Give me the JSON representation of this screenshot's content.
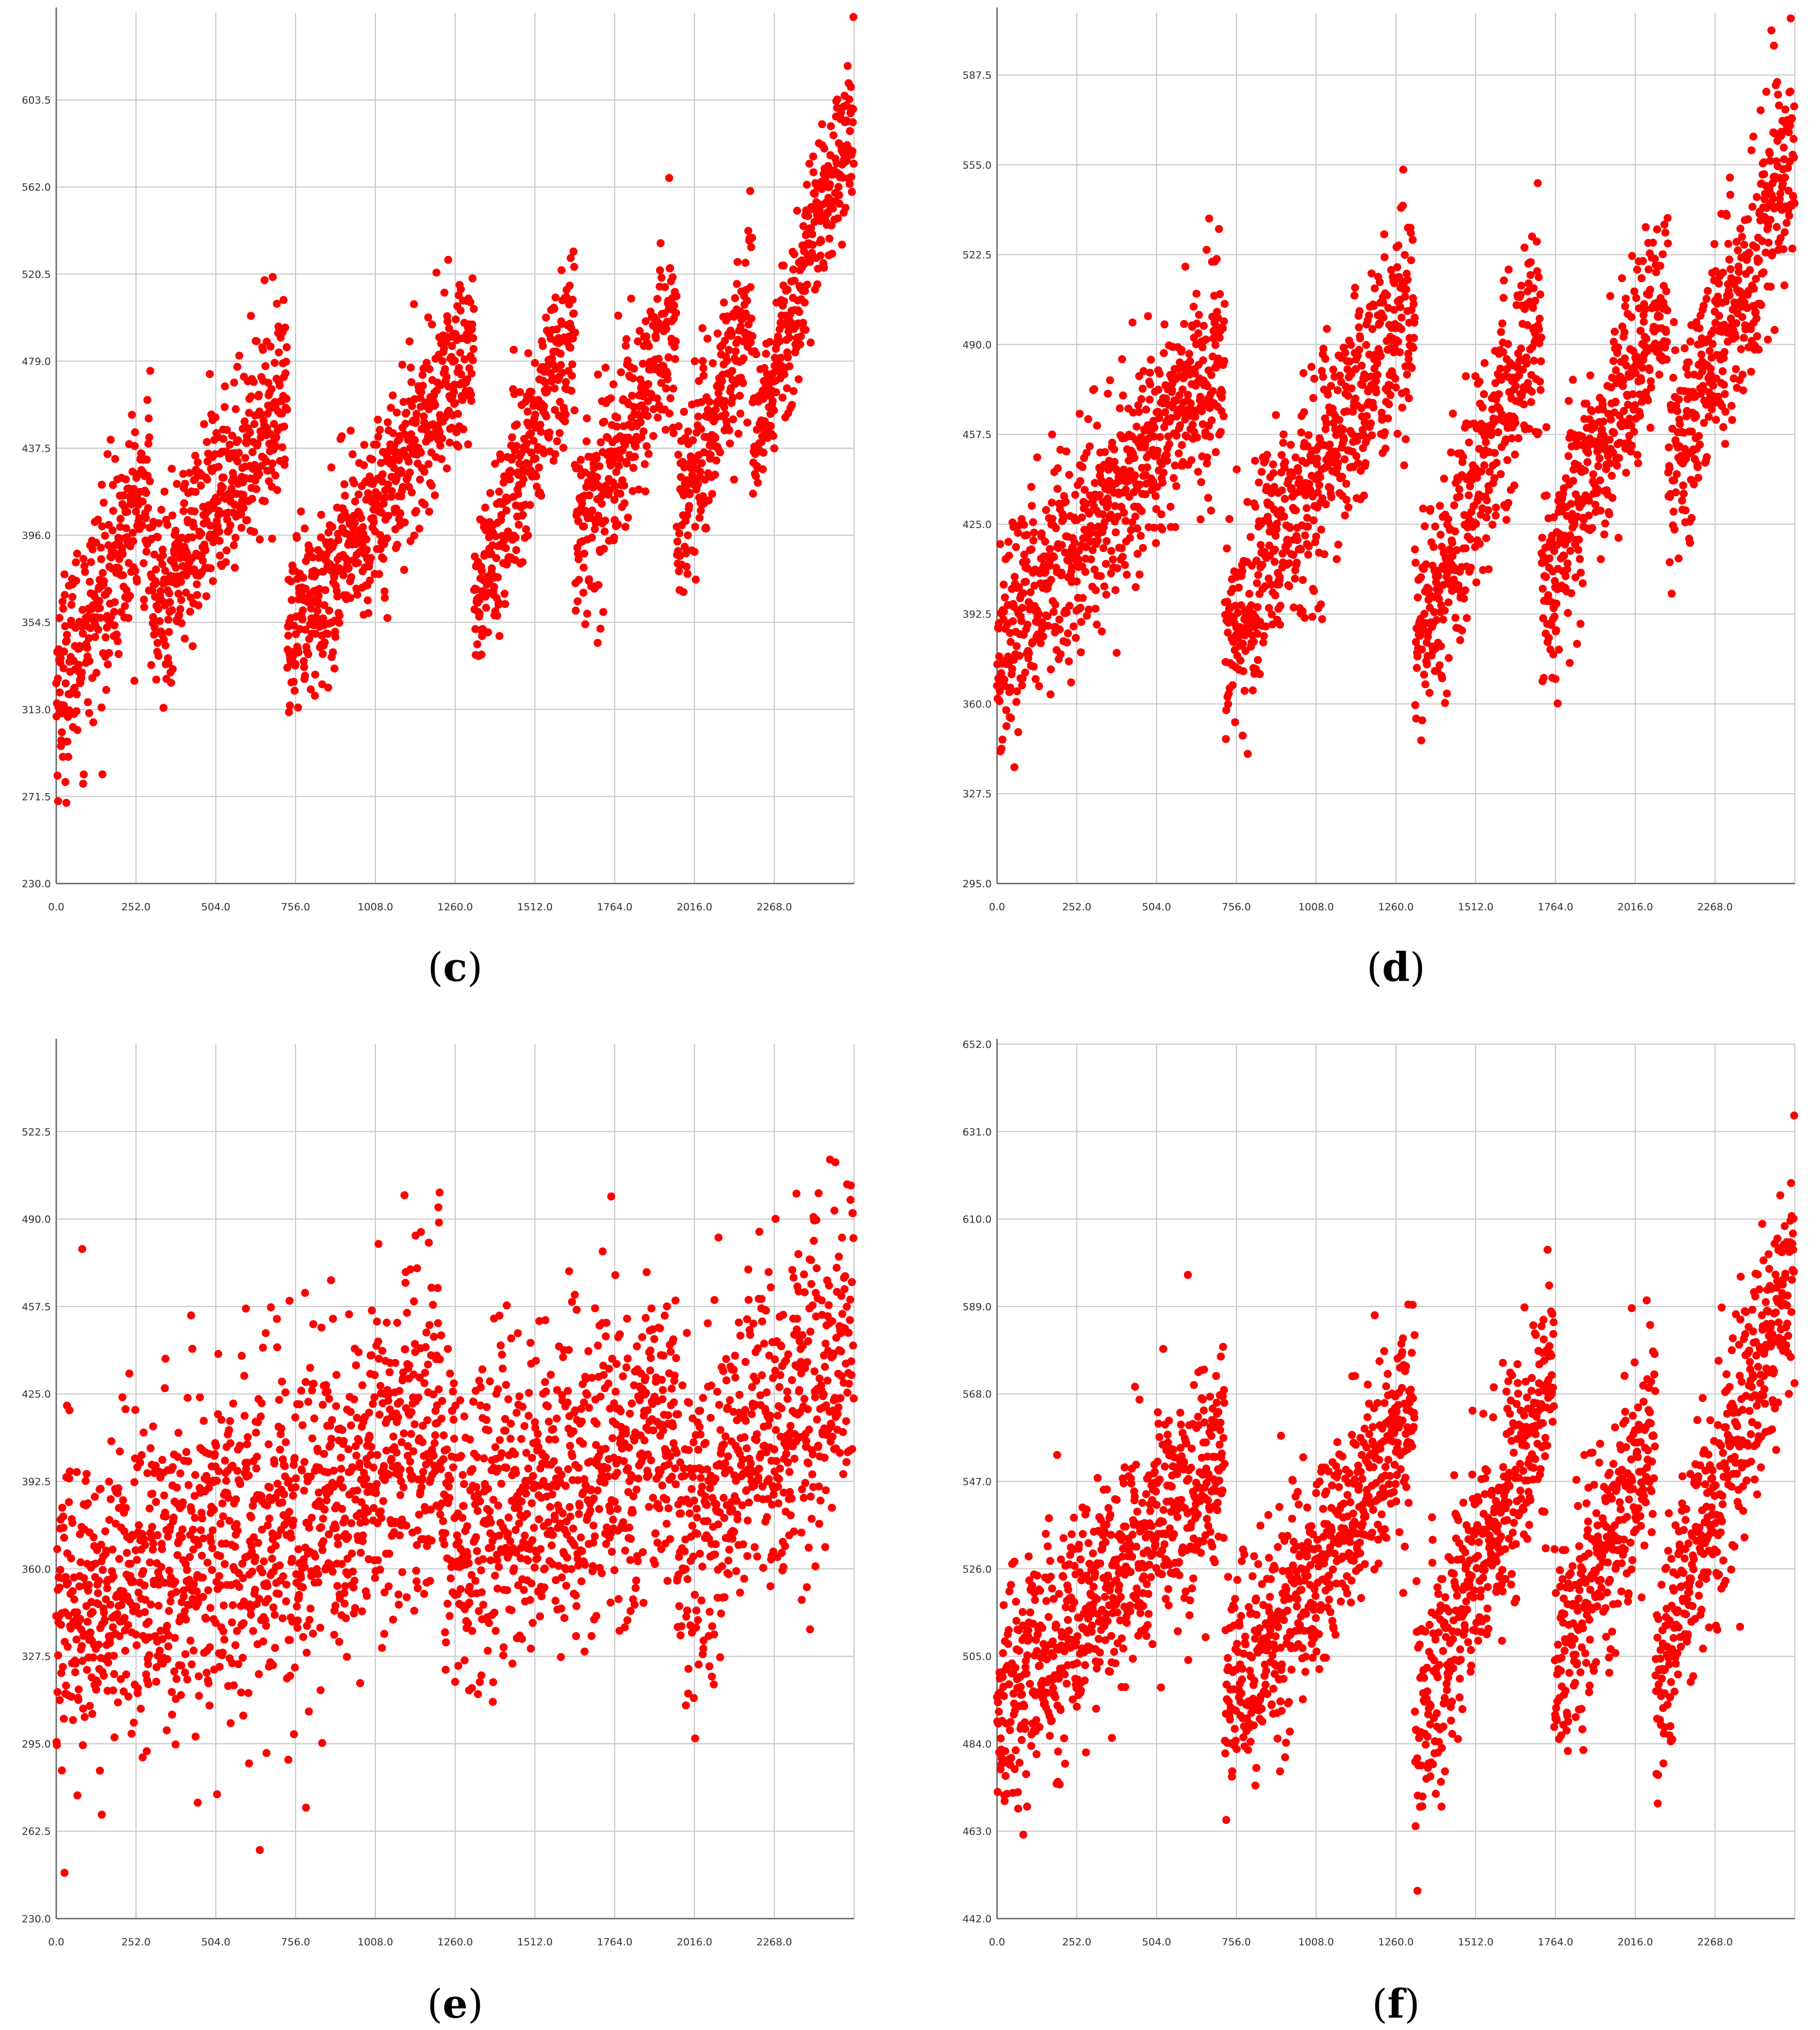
{
  "colors": {
    "points": "#ff0000",
    "grid": "#c8c8c8",
    "axis": "#606060"
  },
  "chart_data": [
    {
      "type": "scatter",
      "panel_label": {
        "open": "(",
        "letter": "c",
        "close": ")"
      },
      "xlim": [
        0,
        2520
      ],
      "ylim": [
        230.0,
        645.0
      ],
      "xticks": [
        "0.0",
        "252.0",
        "504.0",
        "756.0",
        "1008.0",
        "1260.0",
        "1512.0",
        "1764.0",
        "2016.0",
        "2268.0"
      ],
      "yticks": [
        "230.0",
        "271.5",
        "313.0",
        "354.5",
        "396.0",
        "437.5",
        "479.0",
        "520.5",
        "562.0",
        "603.5"
      ],
      "series": [
        {
          "n": 2520,
          "segments": [
            {
              "x0": 0,
              "x1": 300,
              "y_start": 320,
              "y_end": 420,
              "spread": 45
            },
            {
              "x0": 300,
              "x1": 730,
              "y_start": 360,
              "y_end": 470,
              "spread": 40
            },
            {
              "x0": 730,
              "x1": 1320,
              "y_start": 340,
              "y_end": 490,
              "spread": 40
            },
            {
              "x0": 1320,
              "x1": 1640,
              "y_start": 360,
              "y_end": 500,
              "spread": 40
            },
            {
              "x0": 1640,
              "x1": 1960,
              "y_start": 390,
              "y_end": 500,
              "spread": 40
            },
            {
              "x0": 1960,
              "x1": 2200,
              "y_start": 400,
              "y_end": 510,
              "spread": 40
            },
            {
              "x0": 2200,
              "x1": 2520,
              "y_start": 440,
              "y_end": 600,
              "spread": 35
            }
          ]
        }
      ]
    },
    {
      "type": "scatter",
      "panel_label": {
        "open": "(",
        "letter": "d",
        "close": ")"
      },
      "xlim": [
        0,
        2520
      ],
      "ylim": [
        295.0,
        610.0
      ],
      "xticks": [
        "0.0",
        "252.0",
        "504.0",
        "756.0",
        "1008.0",
        "1260.0",
        "1512.0",
        "1764.0",
        "2016.0",
        "2268.0"
      ],
      "yticks": [
        "295.0",
        "327.5",
        "360.0",
        "392.5",
        "425.0",
        "457.5",
        "490.0",
        "522.5",
        "555.0",
        "587.5"
      ],
      "series": [
        {
          "n": 2520,
          "segments": [
            {
              "x0": 0,
              "x1": 720,
              "y_start": 380,
              "y_end": 490,
              "spread": 35
            },
            {
              "x0": 720,
              "x1": 1320,
              "y_start": 380,
              "y_end": 510,
              "spread": 35
            },
            {
              "x0": 1320,
              "x1": 1720,
              "y_start": 380,
              "y_end": 500,
              "spread": 35
            },
            {
              "x0": 1720,
              "x1": 2120,
              "y_start": 400,
              "y_end": 510,
              "spread": 35
            },
            {
              "x0": 2120,
              "x1": 2520,
              "y_start": 440,
              "y_end": 560,
              "spread": 35
            }
          ]
        }
      ]
    },
    {
      "type": "scatter",
      "panel_label": {
        "open": "(",
        "letter": "e",
        "close": ")"
      },
      "xlim": [
        0,
        2520
      ],
      "ylim": [
        230.0,
        555.0
      ],
      "xticks": [
        "0.0",
        "252.0",
        "504.0",
        "756.0",
        "1008.0",
        "1260.0",
        "1512.0",
        "1764.0",
        "2016.0",
        "2268.0"
      ],
      "yticks": [
        "230.0",
        "262.5",
        "295.0",
        "327.5",
        "360.0",
        "392.5",
        "425.0",
        "457.5",
        "490.0",
        "522.5"
      ],
      "series": [
        {
          "n": 2520,
          "segments": [
            {
              "x0": 0,
              "x1": 720,
              "y_start": 340,
              "y_end": 380,
              "spread": 55
            },
            {
              "x0": 720,
              "x1": 1220,
              "y_start": 370,
              "y_end": 420,
              "spread": 55
            },
            {
              "x0": 1220,
              "x1": 1960,
              "y_start": 370,
              "y_end": 410,
              "spread": 55
            },
            {
              "x0": 1960,
              "x1": 2520,
              "y_start": 370,
              "y_end": 440,
              "spread": 55
            }
          ]
        }
      ]
    },
    {
      "type": "scatter",
      "panel_label": {
        "open": "(",
        "letter": "f",
        "close": ")"
      },
      "xlim": [
        0,
        2520
      ],
      "ylim": [
        442.0,
        652.0
      ],
      "xticks": [
        "0.0",
        "252.0",
        "504.0",
        "756.0",
        "1008.0",
        "1260.0",
        "1512.0",
        "1764.0",
        "2016.0",
        "2268.0"
      ],
      "yticks": [
        "442.0",
        "463.0",
        "484.0",
        "505.0",
        "526.0",
        "547.0",
        "568.0",
        "589.0",
        "610.0",
        "631.0",
        "652.0"
      ],
      "series": [
        {
          "n": 2520,
          "segments": [
            {
              "x0": 0,
              "x1": 720,
              "y_start": 490,
              "y_end": 555,
              "spread": 25
            },
            {
              "x0": 720,
              "x1": 1320,
              "y_start": 490,
              "y_end": 565,
              "spread": 25
            },
            {
              "x0": 1320,
              "x1": 1760,
              "y_start": 490,
              "y_end": 570,
              "spread": 25
            },
            {
              "x0": 1760,
              "x1": 2080,
              "y_start": 500,
              "y_end": 560,
              "spread": 25
            },
            {
              "x0": 2080,
              "x1": 2520,
              "y_start": 500,
              "y_end": 600,
              "spread": 25
            }
          ]
        }
      ]
    }
  ]
}
